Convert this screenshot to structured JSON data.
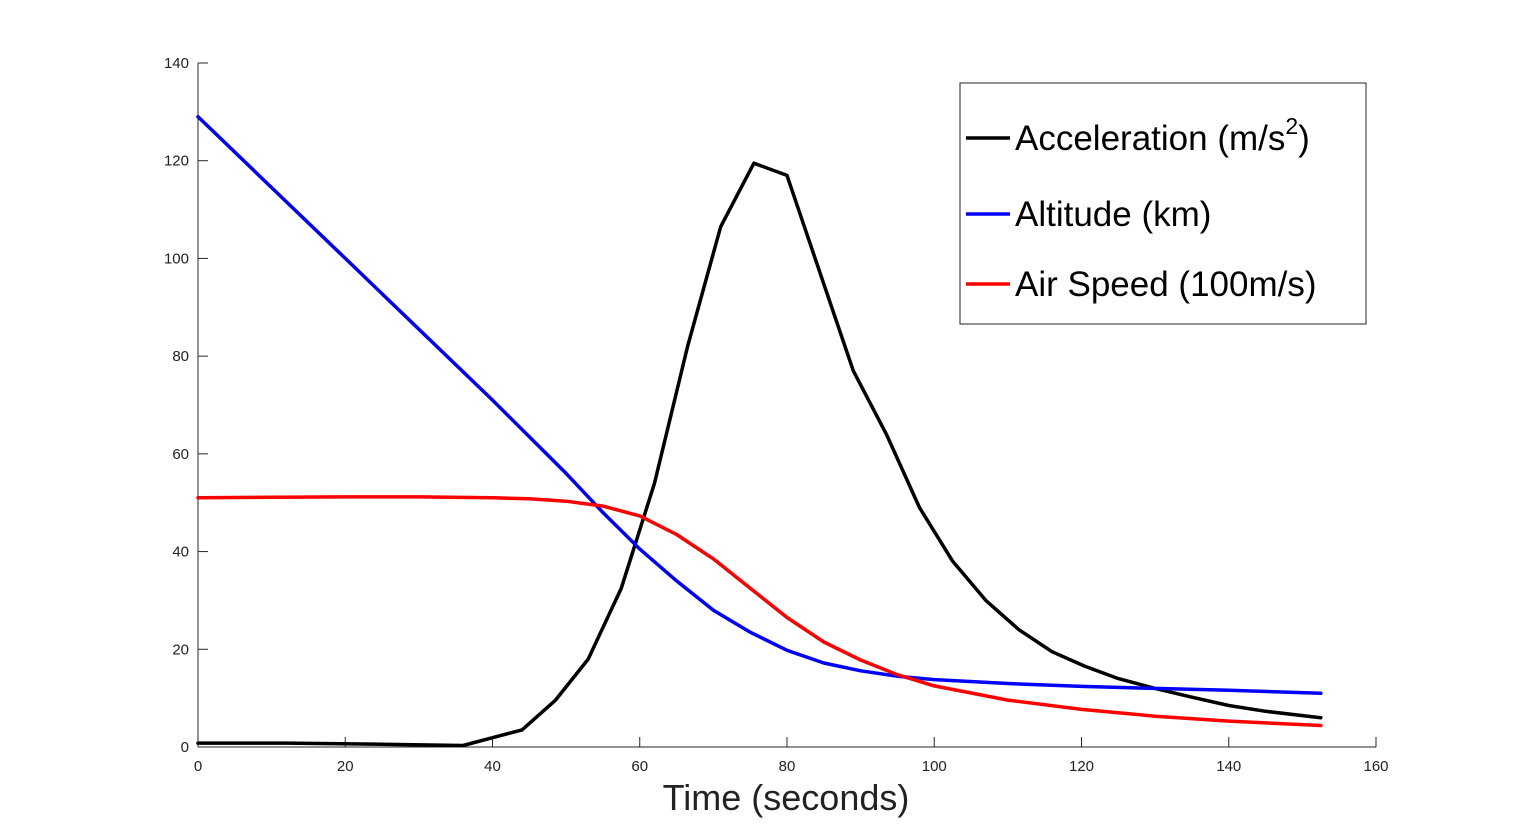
{
  "chart_data": {
    "type": "line",
    "title": "",
    "xlabel": "Time (seconds)",
    "ylabel": "",
    "xlim": [
      0,
      160
    ],
    "ylim": [
      0,
      140
    ],
    "xticks": [
      0,
      20,
      40,
      60,
      80,
      100,
      120,
      140,
      160
    ],
    "yticks": [
      0,
      20,
      40,
      60,
      80,
      100,
      120,
      140
    ],
    "grid": false,
    "legend_position": "top-right",
    "series": [
      {
        "name": "Acceleration (m/s2)",
        "legend_main": "Acceleration (m/s",
        "legend_sup": "2",
        "legend_tail": ")",
        "color": "#000000",
        "points": [
          [
            0,
            0.8
          ],
          [
            12,
            0.8
          ],
          [
            24,
            0.6
          ],
          [
            36,
            0.3
          ],
          [
            44,
            3.5
          ],
          [
            48.5,
            9.5
          ],
          [
            53,
            18
          ],
          [
            57.5,
            32.5
          ],
          [
            62,
            54
          ],
          [
            66.5,
            82
          ],
          [
            71,
            106.5
          ],
          [
            75.5,
            119.5
          ],
          [
            80,
            117
          ],
          [
            84.5,
            97
          ],
          [
            89,
            77
          ],
          [
            93.5,
            64
          ],
          [
            98,
            49
          ],
          [
            102.5,
            38
          ],
          [
            107,
            30
          ],
          [
            111.5,
            24
          ],
          [
            116,
            19.5
          ],
          [
            120.5,
            16.5
          ],
          [
            125,
            14
          ],
          [
            130,
            12
          ],
          [
            135,
            10.2
          ],
          [
            140,
            8.5
          ],
          [
            145,
            7.3
          ],
          [
            152.5,
            6
          ]
        ]
      },
      {
        "name": "Altitude (km)",
        "legend_main": "Altitude (km)",
        "color": "#0000ff",
        "points": [
          [
            0,
            129
          ],
          [
            10,
            114.5
          ],
          [
            20,
            100
          ],
          [
            30,
            85.5
          ],
          [
            40,
            71
          ],
          [
            50,
            56
          ],
          [
            55,
            48
          ],
          [
            60,
            40.5
          ],
          [
            65,
            34
          ],
          [
            70,
            28
          ],
          [
            75,
            23.5
          ],
          [
            80,
            19.8
          ],
          [
            85,
            17.2
          ],
          [
            90,
            15.6
          ],
          [
            95,
            14.5
          ],
          [
            100,
            13.8
          ],
          [
            110,
            13
          ],
          [
            120,
            12.4
          ],
          [
            130,
            12
          ],
          [
            140,
            11.6
          ],
          [
            152.5,
            11
          ]
        ]
      },
      {
        "name": "Air Speed (100m/s)",
        "legend_main": "Air Speed (100m/s)",
        "color": "#ff0000",
        "points": [
          [
            0,
            51
          ],
          [
            10,
            51.1
          ],
          [
            20,
            51.2
          ],
          [
            30,
            51.2
          ],
          [
            40,
            51
          ],
          [
            45,
            50.8
          ],
          [
            50,
            50.3
          ],
          [
            55,
            49.3
          ],
          [
            60,
            47.3
          ],
          [
            65,
            43.5
          ],
          [
            70,
            38.5
          ],
          [
            75,
            32.5
          ],
          [
            80,
            26.5
          ],
          [
            85,
            21.5
          ],
          [
            90,
            17.8
          ],
          [
            95,
            14.8
          ],
          [
            100,
            12.5
          ],
          [
            110,
            9.6
          ],
          [
            120,
            7.7
          ],
          [
            130,
            6.3
          ],
          [
            140,
            5.3
          ],
          [
            152.5,
            4.4
          ]
        ]
      }
    ]
  }
}
